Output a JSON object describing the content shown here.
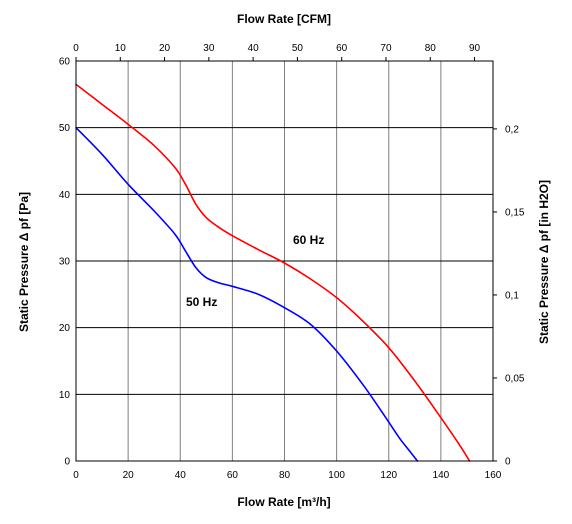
{
  "chart_data": {
    "type": "line",
    "xlabel_bottom": "Flow Rate [m³/h]",
    "xlabel_top": "Flow Rate [CFM]",
    "ylabel_left": "Static Pressure Δ pf [Pa]",
    "ylabel_right": "Static Pressure Δ pf [in H2O]",
    "xlim": [
      0,
      160
    ],
    "ylim": [
      0,
      60
    ],
    "xlim_top": [
      0,
      94.17
    ],
    "ylim_right": [
      0,
      0.2409
    ],
    "x_ticks_bottom": [
      "0",
      "20",
      "40",
      "60",
      "80",
      "100",
      "120",
      "140",
      "160"
    ],
    "x_ticks_top": [
      "0",
      "10",
      "20",
      "30",
      "40",
      "50",
      "60",
      "70",
      "80",
      "90"
    ],
    "y_ticks_left": [
      "0",
      "10",
      "20",
      "30",
      "40",
      "50",
      "60"
    ],
    "y_ticks_right": [
      "0",
      "0,05",
      "0,1",
      "0,15",
      "0,2"
    ],
    "grid": true,
    "series": [
      {
        "name": "60 Hz",
        "color": "#ff0000",
        "x": [
          0,
          10,
          20,
          30,
          38,
          42,
          46,
          50,
          55,
          60,
          70,
          80,
          90,
          100,
          110,
          120,
          130,
          140,
          147,
          151
        ],
        "y": [
          56.5,
          53.5,
          50.5,
          47.3,
          44.0,
          41.5,
          38.5,
          36.5,
          35.0,
          33.8,
          31.7,
          29.7,
          27.3,
          24.5,
          21.0,
          17.0,
          12.0,
          6.5,
          2.5,
          0
        ]
      },
      {
        "name": "50 Hz",
        "color": "#0000ff",
        "x": [
          0,
          10,
          20,
          30,
          38,
          42,
          46,
          50,
          55,
          60,
          70,
          80,
          90,
          100,
          110,
          118,
          124,
          128,
          131
        ],
        "y": [
          50.0,
          46.0,
          41.5,
          37.5,
          34.0,
          31.5,
          29.0,
          27.5,
          26.7,
          26.2,
          25.0,
          23.0,
          20.5,
          16.5,
          11.5,
          7.0,
          3.5,
          1.5,
          0
        ]
      }
    ]
  }
}
